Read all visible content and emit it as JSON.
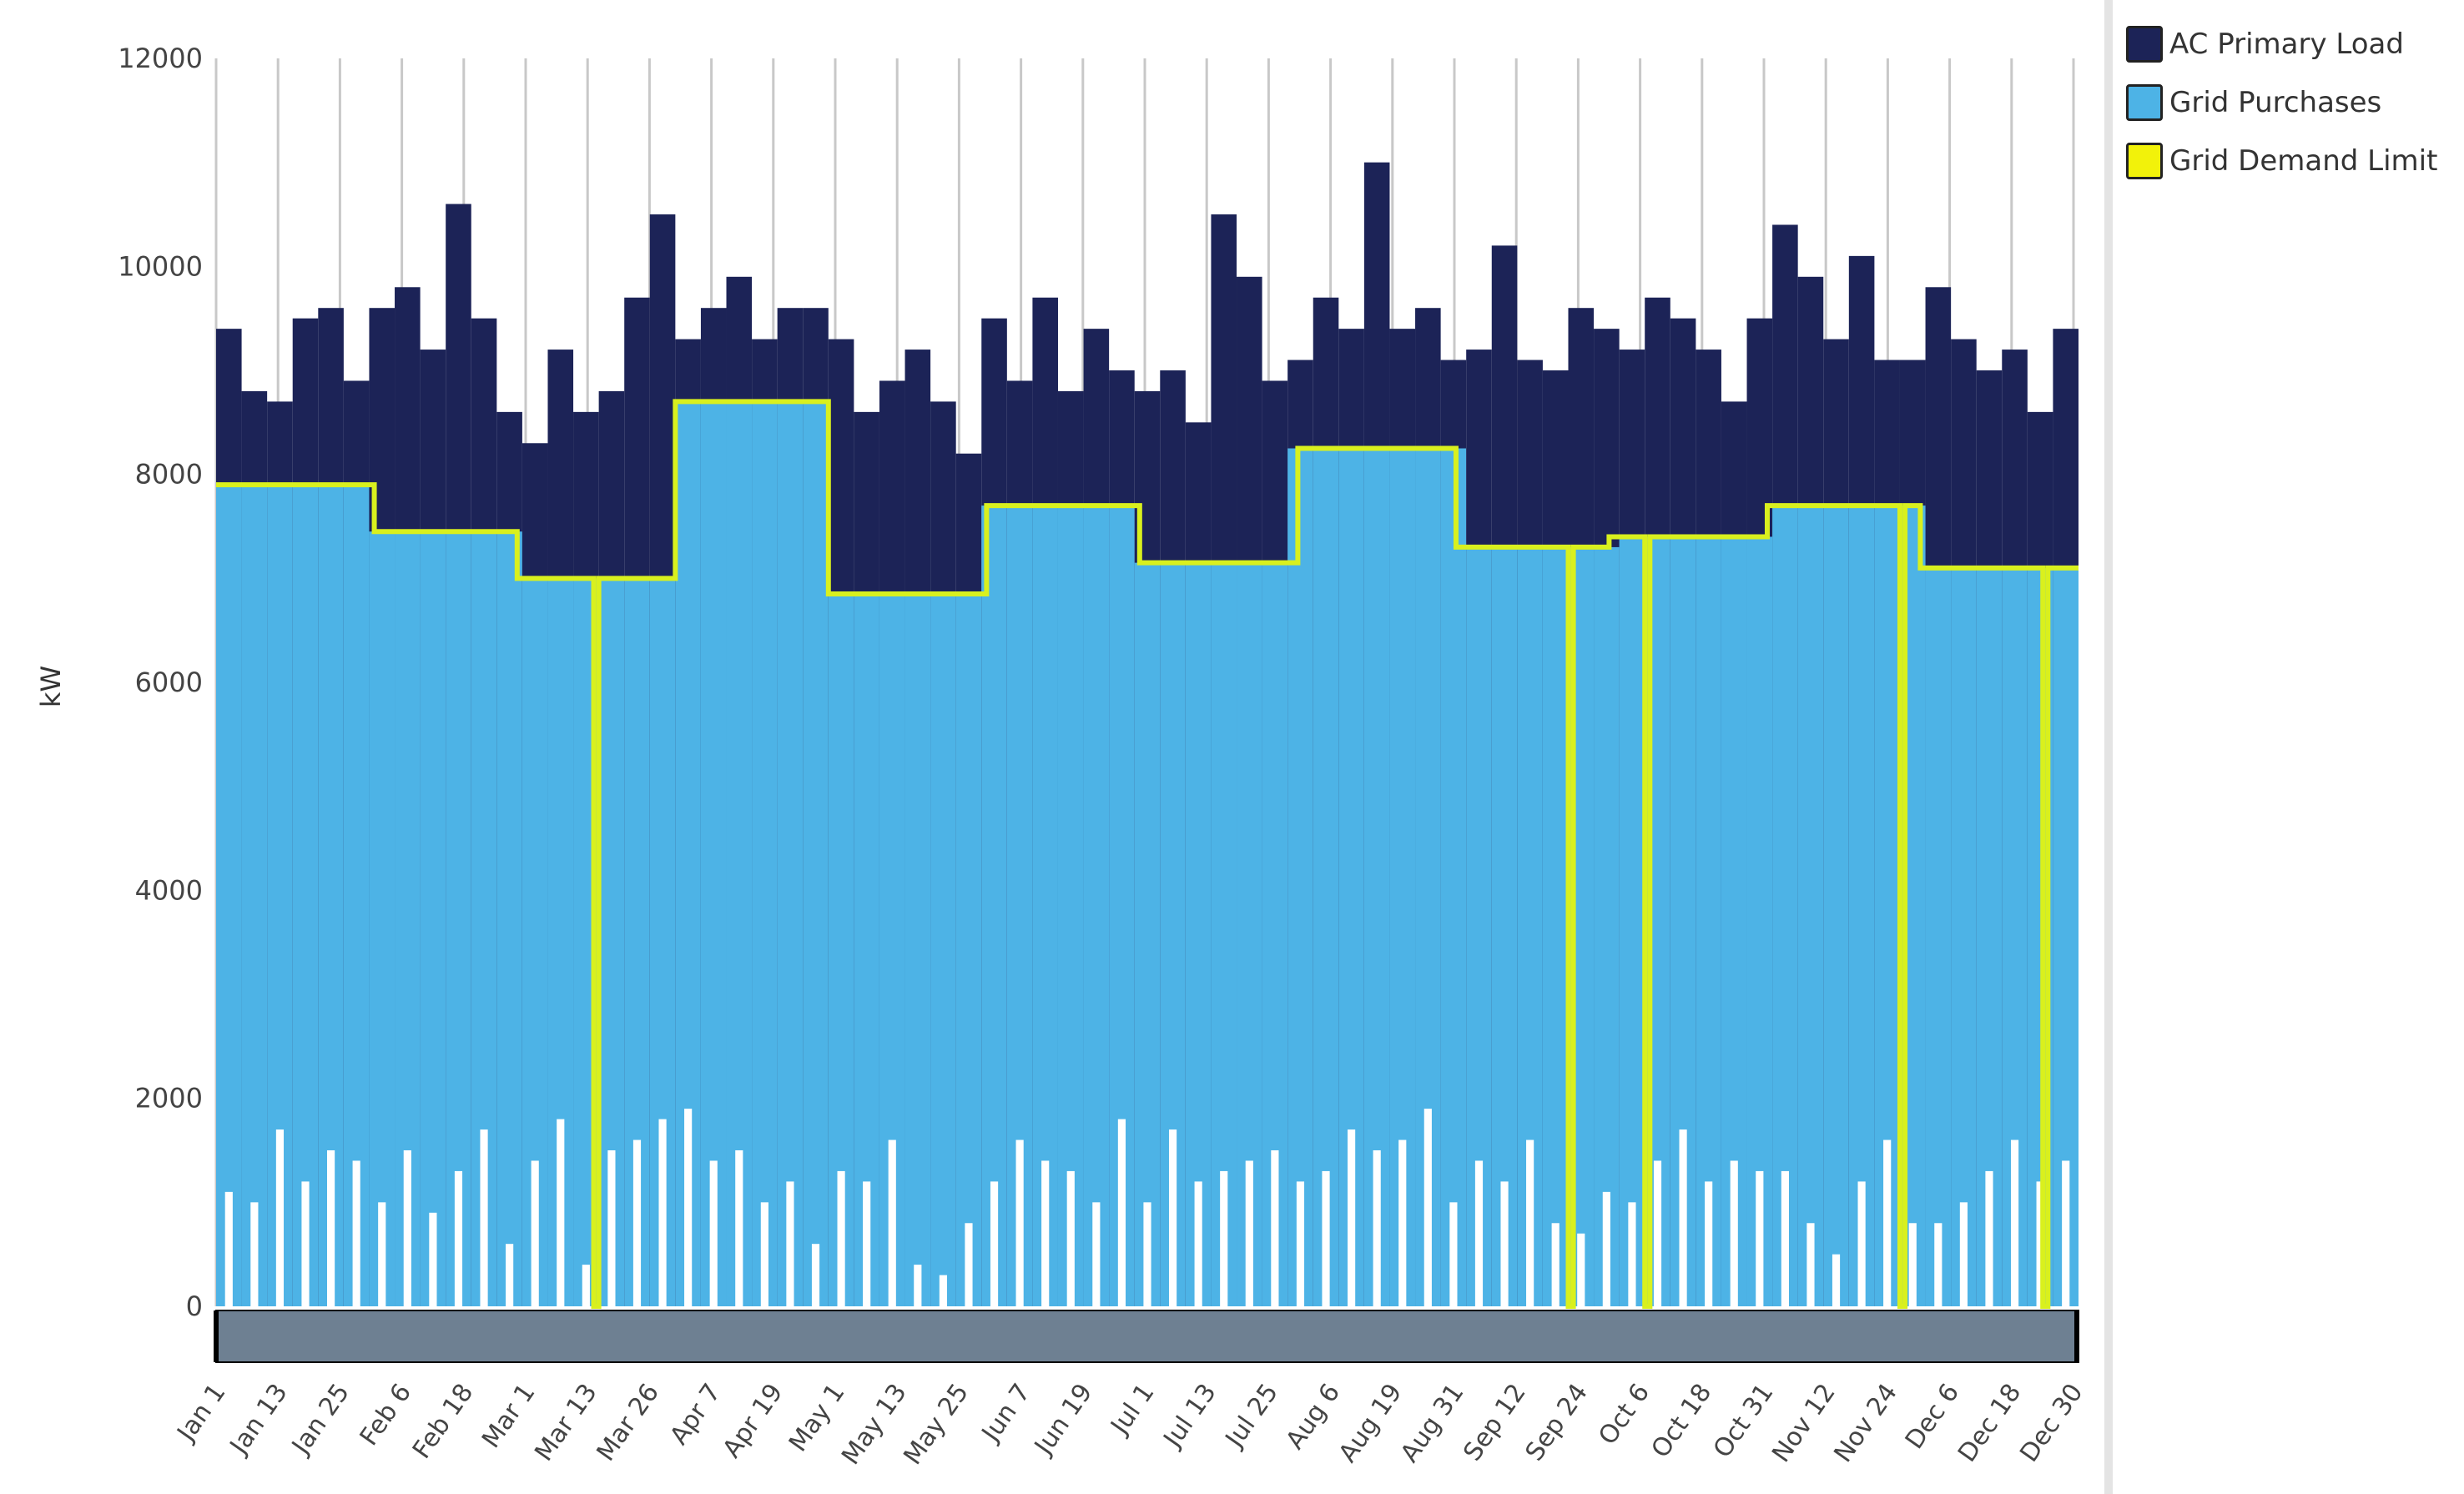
{
  "chart_data": {
    "type": "bar",
    "title": "",
    "xlabel": "",
    "ylabel": "kW",
    "ylim": [
      0,
      12000
    ],
    "yticks": [
      "0",
      "2000",
      "4000",
      "6000",
      "8000",
      "10000",
      "12000"
    ],
    "xtick_labels": [
      "Jan 1",
      "Jan 13",
      "Jan 25",
      "Feb 6",
      "Feb 18",
      "Mar 1",
      "Mar 13",
      "Mar 26",
      "Apr 7",
      "Apr 19",
      "May 1",
      "May 13",
      "May 25",
      "Jun 7",
      "Jun 19",
      "Jul 1",
      "Jul 13",
      "Jul 25",
      "Aug 6",
      "Aug 19",
      "Aug 31",
      "Sep 12",
      "Sep 24",
      "Oct 6",
      "Oct 18",
      "Oct 31",
      "Nov 12",
      "Nov 24",
      "Dec 6",
      "Dec 18",
      "Dec 30"
    ],
    "grid": "vertical",
    "legend_position": "right",
    "series": [
      {
        "name": "AC Primary Load",
        "color": "#1c2357",
        "sample_interval_days": 5,
        "max_values": [
          9400,
          8800,
          8700,
          9500,
          9600,
          8900,
          9600,
          9800,
          9200,
          10600,
          9500,
          8600,
          8300,
          9200,
          8600,
          8800,
          9700,
          10500,
          9300,
          9600,
          9900,
          9300,
          9600,
          9600,
          9300,
          8600,
          8900,
          9200,
          8700,
          8200,
          9500,
          8900,
          9700,
          8800,
          9400,
          9000,
          8800,
          9000,
          8500,
          10500,
          9900,
          8900,
          9100,
          9700,
          9400,
          11000,
          9400,
          9600,
          9100,
          9200,
          10200,
          9100,
          9000,
          9600,
          9400,
          9200,
          9700,
          9500,
          9200,
          8700,
          9500,
          10400,
          9900,
          9300,
          10100,
          9100,
          9100,
          9800,
          9300,
          9000,
          9200,
          8600,
          9400
        ],
        "min_values": [
          1100,
          1000,
          1700,
          1200,
          1500,
          1400,
          1000,
          1500,
          900,
          1300,
          1700,
          600,
          1400,
          1800,
          400,
          1500,
          1600,
          1800,
          1900,
          1400,
          1500,
          1000,
          1200,
          600,
          1300,
          1200,
          1600,
          400,
          300,
          800,
          1200,
          1600,
          1400,
          1300,
          1000,
          1800,
          1000,
          1700,
          1200,
          1300,
          1400,
          1500,
          1200,
          1300,
          1700,
          1500,
          1600,
          1900,
          1000,
          1400,
          1200,
          1600,
          800,
          700,
          1100,
          1000,
          1400,
          1700,
          1200,
          1400,
          1300,
          1300,
          800,
          500,
          1200,
          1600,
          800,
          800,
          1000,
          1300,
          1600,
          1200,
          1400
        ]
      },
      {
        "name": "Grid Purchases",
        "color": "#4db3e6"
      },
      {
        "name": "Grid Demand Limit",
        "color": "#e6f21a",
        "monthly_limits": [
          7900,
          7450,
          7000,
          8700,
          6850,
          7700,
          7150,
          8250,
          7300,
          7400,
          7700,
          7100
        ],
        "zero_dips": [
          "Mar 16",
          "Sep 23",
          "Oct 8",
          "Nov 27",
          "Dec 25"
        ]
      }
    ]
  }
}
